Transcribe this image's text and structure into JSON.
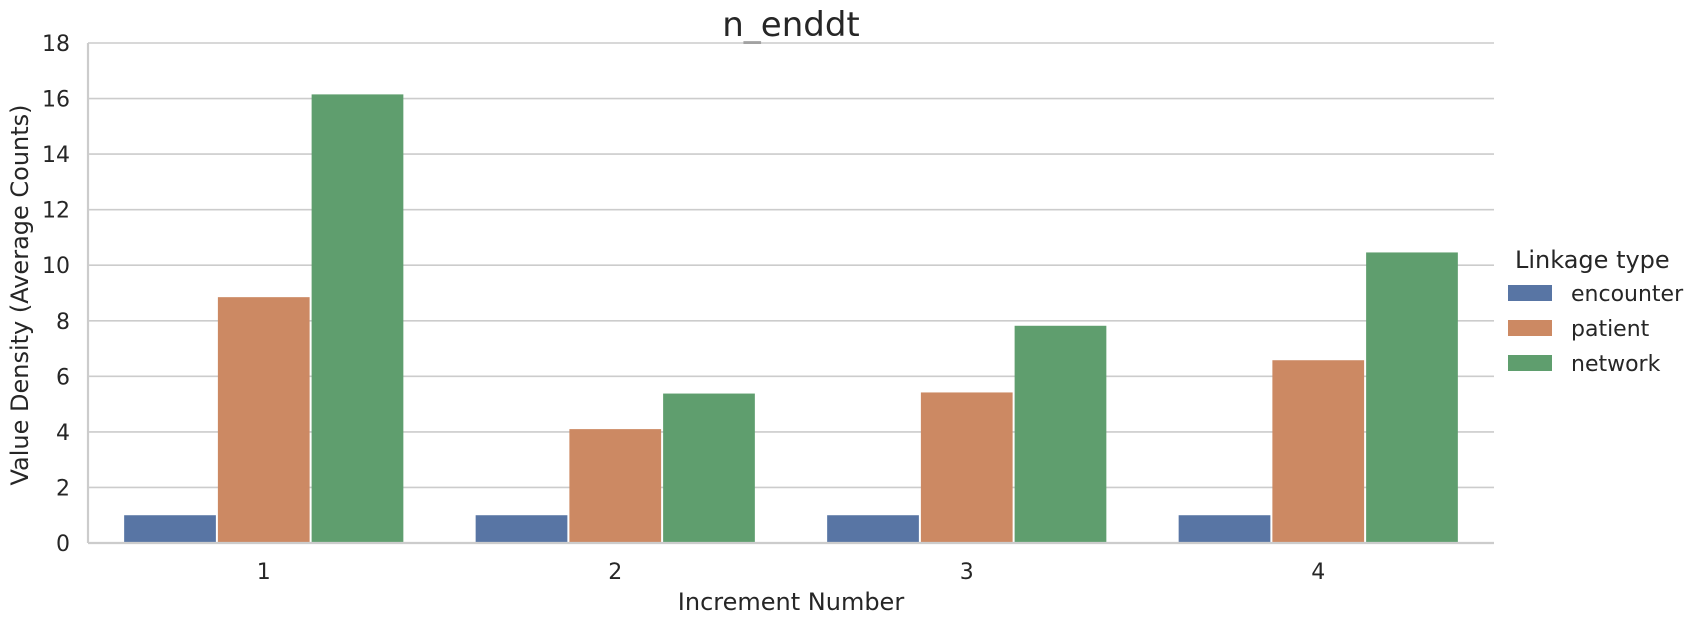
{
  "chart_data": {
    "type": "bar",
    "title": "n_enddt",
    "xlabel": "Increment Number",
    "ylabel": "Value Density (Average Counts)",
    "categories": [
      "1",
      "2",
      "3",
      "4"
    ],
    "ylim": [
      0,
      18
    ],
    "yticks": [
      0,
      2,
      4,
      6,
      8,
      10,
      12,
      14,
      16,
      18
    ],
    "grid": "horizontal",
    "legend": {
      "title": "Linkage type",
      "placement": "right"
    },
    "series": [
      {
        "name": "encounter",
        "color": "#5875a4",
        "values": [
          1.0,
          1.0,
          1.0,
          1.0
        ]
      },
      {
        "name": "patient",
        "color": "#cc8963",
        "values": [
          8.85,
          4.1,
          5.42,
          6.58
        ]
      },
      {
        "name": "network",
        "color": "#5f9e6e",
        "values": [
          16.15,
          5.38,
          7.82,
          10.46
        ]
      }
    ]
  }
}
